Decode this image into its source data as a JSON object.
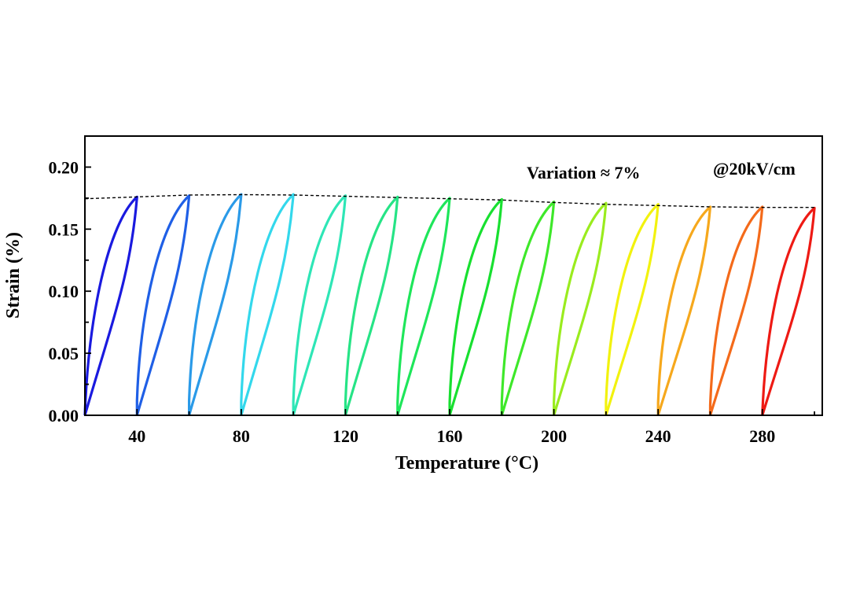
{
  "chart_data": {
    "type": "line",
    "title": "",
    "xlabel": "Temperature (°C)",
    "ylabel": "Strain (%)",
    "xlim": [
      20,
      303
    ],
    "ylim": [
      0,
      0.225
    ],
    "x_ticks": [
      "40",
      "80",
      "120",
      "160",
      "200",
      "240",
      "280"
    ],
    "y_ticks": [
      "0.00",
      "0.05",
      "0.10",
      "0.15",
      "0.20"
    ],
    "grid": false,
    "annotations": [
      "Variation ≈ 7%",
      "@20kV/cm"
    ],
    "series": [
      {
        "temperature": 20,
        "max_strain": 0.176,
        "remnant_strain": 0.0,
        "color": "#1a1adf"
      },
      {
        "temperature": 40,
        "max_strain": 0.177,
        "remnant_strain": 0.012,
        "color": "#1f5fe6"
      },
      {
        "temperature": 60,
        "max_strain": 0.178,
        "remnant_strain": 0.012,
        "color": "#2a9ae8"
      },
      {
        "temperature": 80,
        "max_strain": 0.178,
        "remnant_strain": 0.011,
        "color": "#33d8ec"
      },
      {
        "temperature": 100,
        "max_strain": 0.177,
        "remnant_strain": 0.011,
        "color": "#2ee6b6"
      },
      {
        "temperature": 120,
        "max_strain": 0.176,
        "remnant_strain": 0.01,
        "color": "#26e486"
      },
      {
        "temperature": 140,
        "max_strain": 0.175,
        "remnant_strain": 0.01,
        "color": "#1ee65a"
      },
      {
        "temperature": 160,
        "max_strain": 0.174,
        "remnant_strain": 0.01,
        "color": "#18e030"
      },
      {
        "temperature": 180,
        "max_strain": 0.172,
        "remnant_strain": 0.01,
        "color": "#3ee82a"
      },
      {
        "temperature": 200,
        "max_strain": 0.171,
        "remnant_strain": 0.01,
        "color": "#9aec1e"
      },
      {
        "temperature": 220,
        "max_strain": 0.17,
        "remnant_strain": 0.01,
        "color": "#f2f20e"
      },
      {
        "temperature": 240,
        "max_strain": 0.168,
        "remnant_strain": 0.01,
        "color": "#f6a81c"
      },
      {
        "temperature": 260,
        "max_strain": 0.168,
        "remnant_strain": 0.008,
        "color": "#f46a1a"
      },
      {
        "temperature": 280,
        "max_strain": 0.167,
        "remnant_strain": 0.0,
        "color": "#ee1a14"
      }
    ],
    "envelope": {
      "x": [
        20,
        40,
        60,
        80,
        100,
        120,
        140,
        160,
        180,
        200,
        220,
        240,
        260,
        280,
        300
      ],
      "y": [
        0.1745,
        0.176,
        0.1775,
        0.1778,
        0.1775,
        0.1765,
        0.1755,
        0.1745,
        0.1735,
        0.1715,
        0.17,
        0.169,
        0.168,
        0.1675,
        0.1675
      ]
    }
  }
}
